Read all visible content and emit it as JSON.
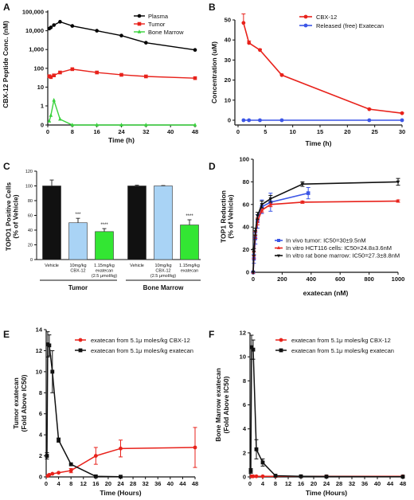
{
  "chart_data": [
    {
      "id": "A",
      "panel_label": "A",
      "type": "line",
      "xlabel": "Time (h)",
      "ylabel": "CBX-12 Peptide Conc. (nM)",
      "yscale": "log",
      "xlim": [
        0,
        48
      ],
      "xticks": [
        0,
        8,
        16,
        24,
        32,
        40,
        48
      ],
      "yticks": [
        0,
        1,
        10,
        100,
        1000,
        10000,
        100000
      ],
      "ytick_labels": [
        "0",
        "1",
        "10",
        "100",
        "1,000",
        "10,000",
        "100,000"
      ],
      "legend_position": "top-right",
      "series": [
        {
          "name": "Plasma",
          "color": "#000000",
          "marker": "circle",
          "x": [
            0.5,
            1,
            2,
            4,
            8,
            16,
            24,
            32,
            48
          ],
          "y": [
            13000,
            15000,
            20000,
            30000,
            18000,
            10000,
            5500,
            2300,
            950
          ]
        },
        {
          "name": "Tumor",
          "color": "#e8221b",
          "marker": "square",
          "x": [
            0.5,
            1,
            2,
            4,
            8,
            16,
            24,
            32,
            48
          ],
          "y": [
            38,
            34,
            42,
            60,
            90,
            60,
            45,
            37,
            30
          ]
        },
        {
          "name": "Bone Marrow",
          "color": "#39d23c",
          "marker": "triangle",
          "x": [
            0.5,
            1,
            2,
            4,
            8,
            16,
            24,
            32,
            48
          ],
          "y": [
            0.2,
            0.5,
            2,
            0.3,
            0,
            0,
            0,
            0,
            0
          ]
        }
      ]
    },
    {
      "id": "B",
      "panel_label": "B",
      "type": "line",
      "xlabel": "Time (h)",
      "ylabel": "Concentration (uM)",
      "xlim": [
        0,
        30
      ],
      "ylim": [
        0,
        50
      ],
      "xticks": [
        0,
        5,
        10,
        15,
        20,
        25,
        30
      ],
      "yticks": [
        0,
        10,
        20,
        30,
        40,
        50
      ],
      "legend_position": "top-right",
      "series": [
        {
          "name": "CBX-12",
          "color": "#e8221b",
          "marker": "circle",
          "x": [
            1,
            2,
            4,
            8,
            24,
            30
          ],
          "y": [
            48.5,
            38.5,
            35,
            22.5,
            5.5,
            3.5
          ],
          "err": [
            4.5,
            1,
            0.5,
            0.5,
            0.3,
            0.3
          ]
        },
        {
          "name": "Released (free) Exatecan",
          "color": "#3b55e6",
          "marker": "circle",
          "x": [
            1,
            2,
            4,
            8,
            24,
            30
          ],
          "y": [
            0,
            0,
            0,
            0,
            0,
            0
          ]
        }
      ]
    },
    {
      "id": "C",
      "panel_label": "C",
      "type": "bar",
      "ylabel": "TOPO1 Positive Cells\n(% of Vehicle)",
      "ylim": [
        0,
        120
      ],
      "yticks": [
        0,
        20,
        40,
        60,
        80,
        100,
        120
      ],
      "bars": [
        {
          "label": "Vehicle",
          "value": 100,
          "err": 8,
          "color": "#111111",
          "sig": ""
        },
        {
          "label": "10mg/kg\nCBX-12",
          "value": 50,
          "err": 6,
          "color": "#a9d3f5",
          "sig": "***"
        },
        {
          "label": "1.15mg/kg\nexatecan\n(2.5 μmol/kg)",
          "value": 38,
          "err": 4,
          "color": "#33e633",
          "sig": "****"
        },
        {
          "label": "Vehicle",
          "value": 100,
          "err": 1,
          "color": "#111111",
          "sig": ""
        },
        {
          "label": "10mg/kg\nCBX-12\n(2.5 μmol/kg)",
          "value": 100,
          "err": 0.5,
          "color": "#a9d3f5",
          "sig": ""
        },
        {
          "label": "1.15mg/kg\nexatecan",
          "value": 47,
          "err": 7,
          "color": "#33e633",
          "sig": "****"
        }
      ],
      "groups": [
        "Tumor",
        "Bone Marrow"
      ]
    },
    {
      "id": "D",
      "panel_label": "D",
      "type": "line",
      "xlabel": "exatecan (nM)",
      "ylabel": "TOP1 Reduction\n(% of Vehicle)",
      "xlim": [
        0,
        1000
      ],
      "ylim": [
        0,
        100
      ],
      "xticks": [
        0,
        200,
        400,
        600,
        800,
        1000
      ],
      "yticks": [
        0,
        20,
        40,
        60,
        80,
        100
      ],
      "legend_position": "bottom-right",
      "series": [
        {
          "name": "In vivo tumor: IC50=30±9.5nM",
          "color": "#3b55e6",
          "marker": "square",
          "x": [
            0,
            5,
            15,
            30,
            60,
            120,
            380
          ],
          "y": [
            0,
            12,
            30,
            45,
            58,
            62,
            70
          ],
          "err": [
            0,
            4,
            5,
            6,
            6,
            8,
            5
          ]
        },
        {
          "name": "In vitro HCT116 cells: IC50=24.8±3.6nM",
          "color": "#e8221b",
          "marker": "triangle",
          "x": [
            0,
            5,
            15,
            30,
            60,
            120,
            340,
            1000
          ],
          "y": [
            0,
            15,
            33,
            45,
            55,
            60,
            62,
            63
          ],
          "err": [
            0,
            3,
            3,
            3,
            2,
            2,
            1,
            1
          ]
        },
        {
          "name": "In vitro rat bone marrow: IC50=27.3±8.8nM",
          "color": "#111111",
          "marker": "triangle-down",
          "x": [
            0,
            5,
            15,
            30,
            60,
            120,
            340,
            1000
          ],
          "y": [
            0,
            18,
            36,
            50,
            60,
            65,
            78,
            80
          ],
          "err": [
            0,
            3,
            3,
            3,
            3,
            3,
            2,
            3
          ]
        }
      ]
    },
    {
      "id": "E",
      "panel_label": "E",
      "type": "line",
      "xlabel": "Time (Hours)",
      "ylabel": "Tumor exatecan\n(Fold Above IC50)",
      "xlim": [
        0,
        48
      ],
      "ylim": [
        0,
        14
      ],
      "xticks": [
        0,
        4,
        8,
        12,
        16,
        20,
        24,
        28,
        32,
        36,
        40,
        44,
        48
      ],
      "yticks": [
        0,
        2,
        4,
        6,
        8,
        10,
        12,
        14
      ],
      "legend_position": "top-right",
      "series": [
        {
          "name": "exatecan from 5.1μ moles/kg CBX-12",
          "color": "#e8221b",
          "marker": "circle",
          "x": [
            0.5,
            1,
            2,
            4,
            8,
            16,
            24,
            48
          ],
          "y": [
            0.1,
            0.2,
            0.3,
            0.4,
            0.6,
            2.0,
            2.7,
            2.8
          ],
          "err": [
            0.05,
            0.05,
            0.05,
            0.05,
            0.2,
            0.8,
            0.8,
            1.9
          ]
        },
        {
          "name": "exatecan from 5.1μ moles/kg exatecan",
          "color": "#111111",
          "marker": "square",
          "x": [
            0.25,
            0.5,
            1,
            2,
            4,
            8,
            16,
            24
          ],
          "y": [
            2,
            12.6,
            12.5,
            10,
            3.5,
            1.2,
            0.05,
            0.02
          ],
          "err": [
            0.3,
            1.2,
            1.0,
            2.0,
            0.2,
            0.1,
            0.02,
            0.02
          ]
        }
      ]
    },
    {
      "id": "F",
      "panel_label": "F",
      "type": "line",
      "xlabel": "Time (Hours)",
      "ylabel": "Bone Marrow exatecan\n(Fold Above IC50)",
      "xlim": [
        0,
        48
      ],
      "ylim": [
        0,
        12
      ],
      "xticks": [
        0,
        4,
        8,
        12,
        16,
        20,
        24,
        28,
        32,
        36,
        40,
        44,
        48
      ],
      "yticks": [
        0,
        2,
        4,
        6,
        8,
        10,
        12
      ],
      "legend_position": "top-right",
      "series": [
        {
          "name": "exatecan from 5.1μ moles/kg CBX-12",
          "color": "#e8221b",
          "marker": "circle",
          "x": [
            0.5,
            1,
            2,
            4,
            8,
            16,
            24,
            48
          ],
          "y": [
            0.05,
            0.05,
            0.05,
            0.05,
            0.05,
            0.05,
            0.05,
            0.05
          ]
        },
        {
          "name": "exatecan from 5.1μ moles/kg exatecan",
          "color": "#111111",
          "marker": "square",
          "x": [
            0.25,
            0.5,
            1,
            2,
            4,
            8,
            16,
            24,
            48
          ],
          "y": [
            0.5,
            10.8,
            10.6,
            2.3,
            1.2,
            0.1,
            0.05,
            0.03,
            0.02
          ],
          "err": [
            0.2,
            1.0,
            0.8,
            0.8,
            0.3,
            0.05,
            0.02,
            0.02,
            0.02
          ]
        }
      ]
    }
  ]
}
